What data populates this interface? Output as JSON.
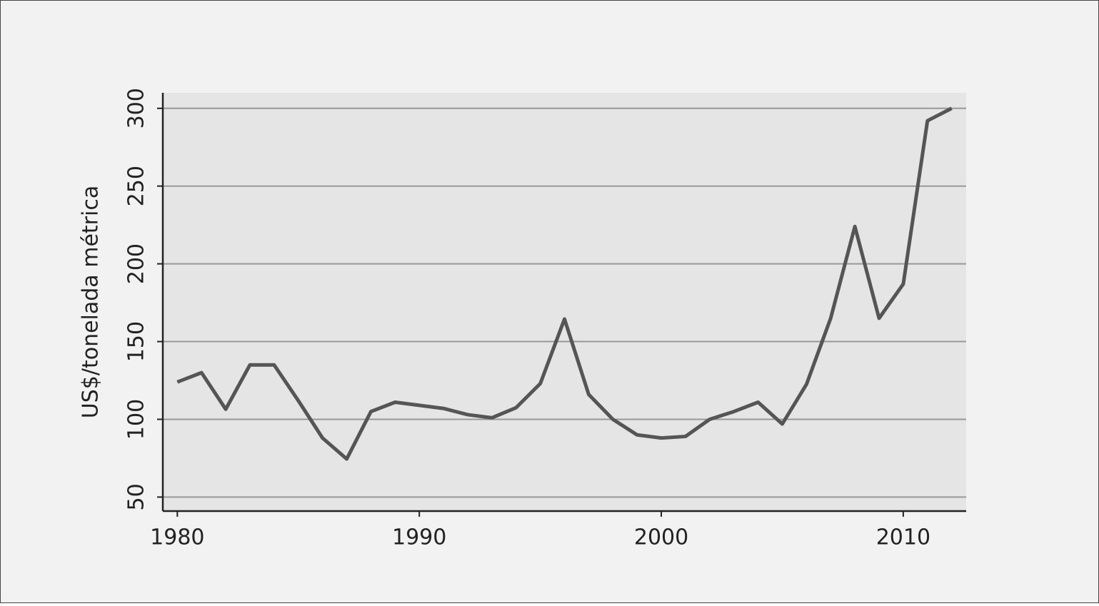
{
  "chart_data": {
    "type": "line",
    "y_label": "US$/tonelada métrica",
    "x": [
      1980,
      1981,
      1982,
      1983,
      1984,
      1985,
      1986,
      1987,
      1988,
      1989,
      1990,
      1991,
      1992,
      1993,
      1994,
      1995,
      1996,
      1997,
      1998,
      1999,
      2000,
      2001,
      2002,
      2003,
      2004,
      2005,
      2006,
      2007,
      2008,
      2009,
      2010,
      2011,
      2012
    ],
    "series": [
      {
        "color": "#555555",
        "values": [
          124,
          130,
          106.5,
          135,
          135,
          112,
          88,
          74.5,
          105,
          111,
          109,
          107,
          103,
          101,
          107.5,
          123,
          164.5,
          116,
          100,
          90,
          88,
          89,
          100,
          105,
          111,
          97,
          122.5,
          165,
          224,
          165,
          187,
          292,
          300
        ]
      }
    ],
    "xlim": [
      1979.4,
      2012.6
    ],
    "xticks": [
      1980,
      1990,
      2000,
      2010
    ],
    "ylim": [
      41,
      310
    ],
    "yticks": [
      50,
      100,
      150,
      200,
      250,
      300
    ],
    "grid": true
  }
}
